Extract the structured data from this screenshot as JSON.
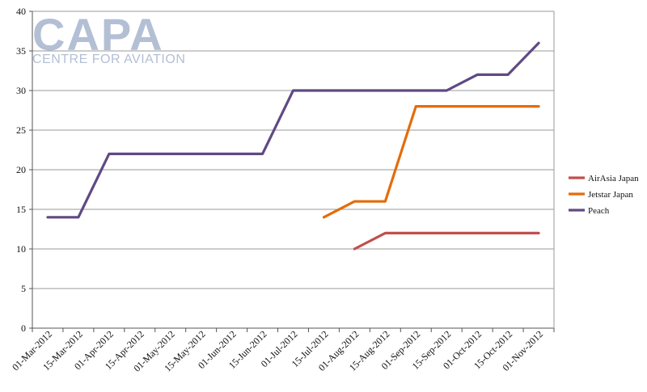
{
  "watermark": {
    "brand": "CAPA",
    "tagline": "CENTRE FOR AVIATION"
  },
  "chart_data": {
    "type": "line",
    "title": "",
    "xlabel": "",
    "ylabel": "",
    "ylim": [
      0,
      40
    ],
    "yticks": [
      0,
      5,
      10,
      15,
      20,
      25,
      30,
      35,
      40
    ],
    "grid": true,
    "legend_position": "right",
    "categories": [
      "01-Mar-2012",
      "15-Mar-2012",
      "01-Apr-2012",
      "15-Apr-2012",
      "01-May-2012",
      "15-May-2012",
      "01-Jun-2012",
      "15-Jun-2012",
      "01-Jul-2012",
      "15-Jul-2012",
      "01-Aug-2012",
      "15-Aug-2012",
      "01-Sep-2012",
      "15-Sep-2012",
      "01-Oct-2012",
      "15-Oct-2012",
      "01-Nov-2012"
    ],
    "series": [
      {
        "name": "AirAsia Japan",
        "color": "#c0504d",
        "values": [
          null,
          null,
          null,
          null,
          null,
          null,
          null,
          null,
          null,
          null,
          10,
          12,
          12,
          12,
          12,
          12,
          12
        ]
      },
      {
        "name": "Jetstar Japan",
        "color": "#e46c0a",
        "values": [
          null,
          null,
          null,
          null,
          null,
          null,
          null,
          null,
          null,
          14,
          16,
          16,
          28,
          28,
          28,
          28,
          28
        ]
      },
      {
        "name": "Peach",
        "color": "#5f4a84",
        "values": [
          14,
          14,
          22,
          22,
          22,
          22,
          22,
          22,
          30,
          30,
          30,
          30,
          30,
          30,
          32,
          32,
          36
        ]
      }
    ]
  }
}
